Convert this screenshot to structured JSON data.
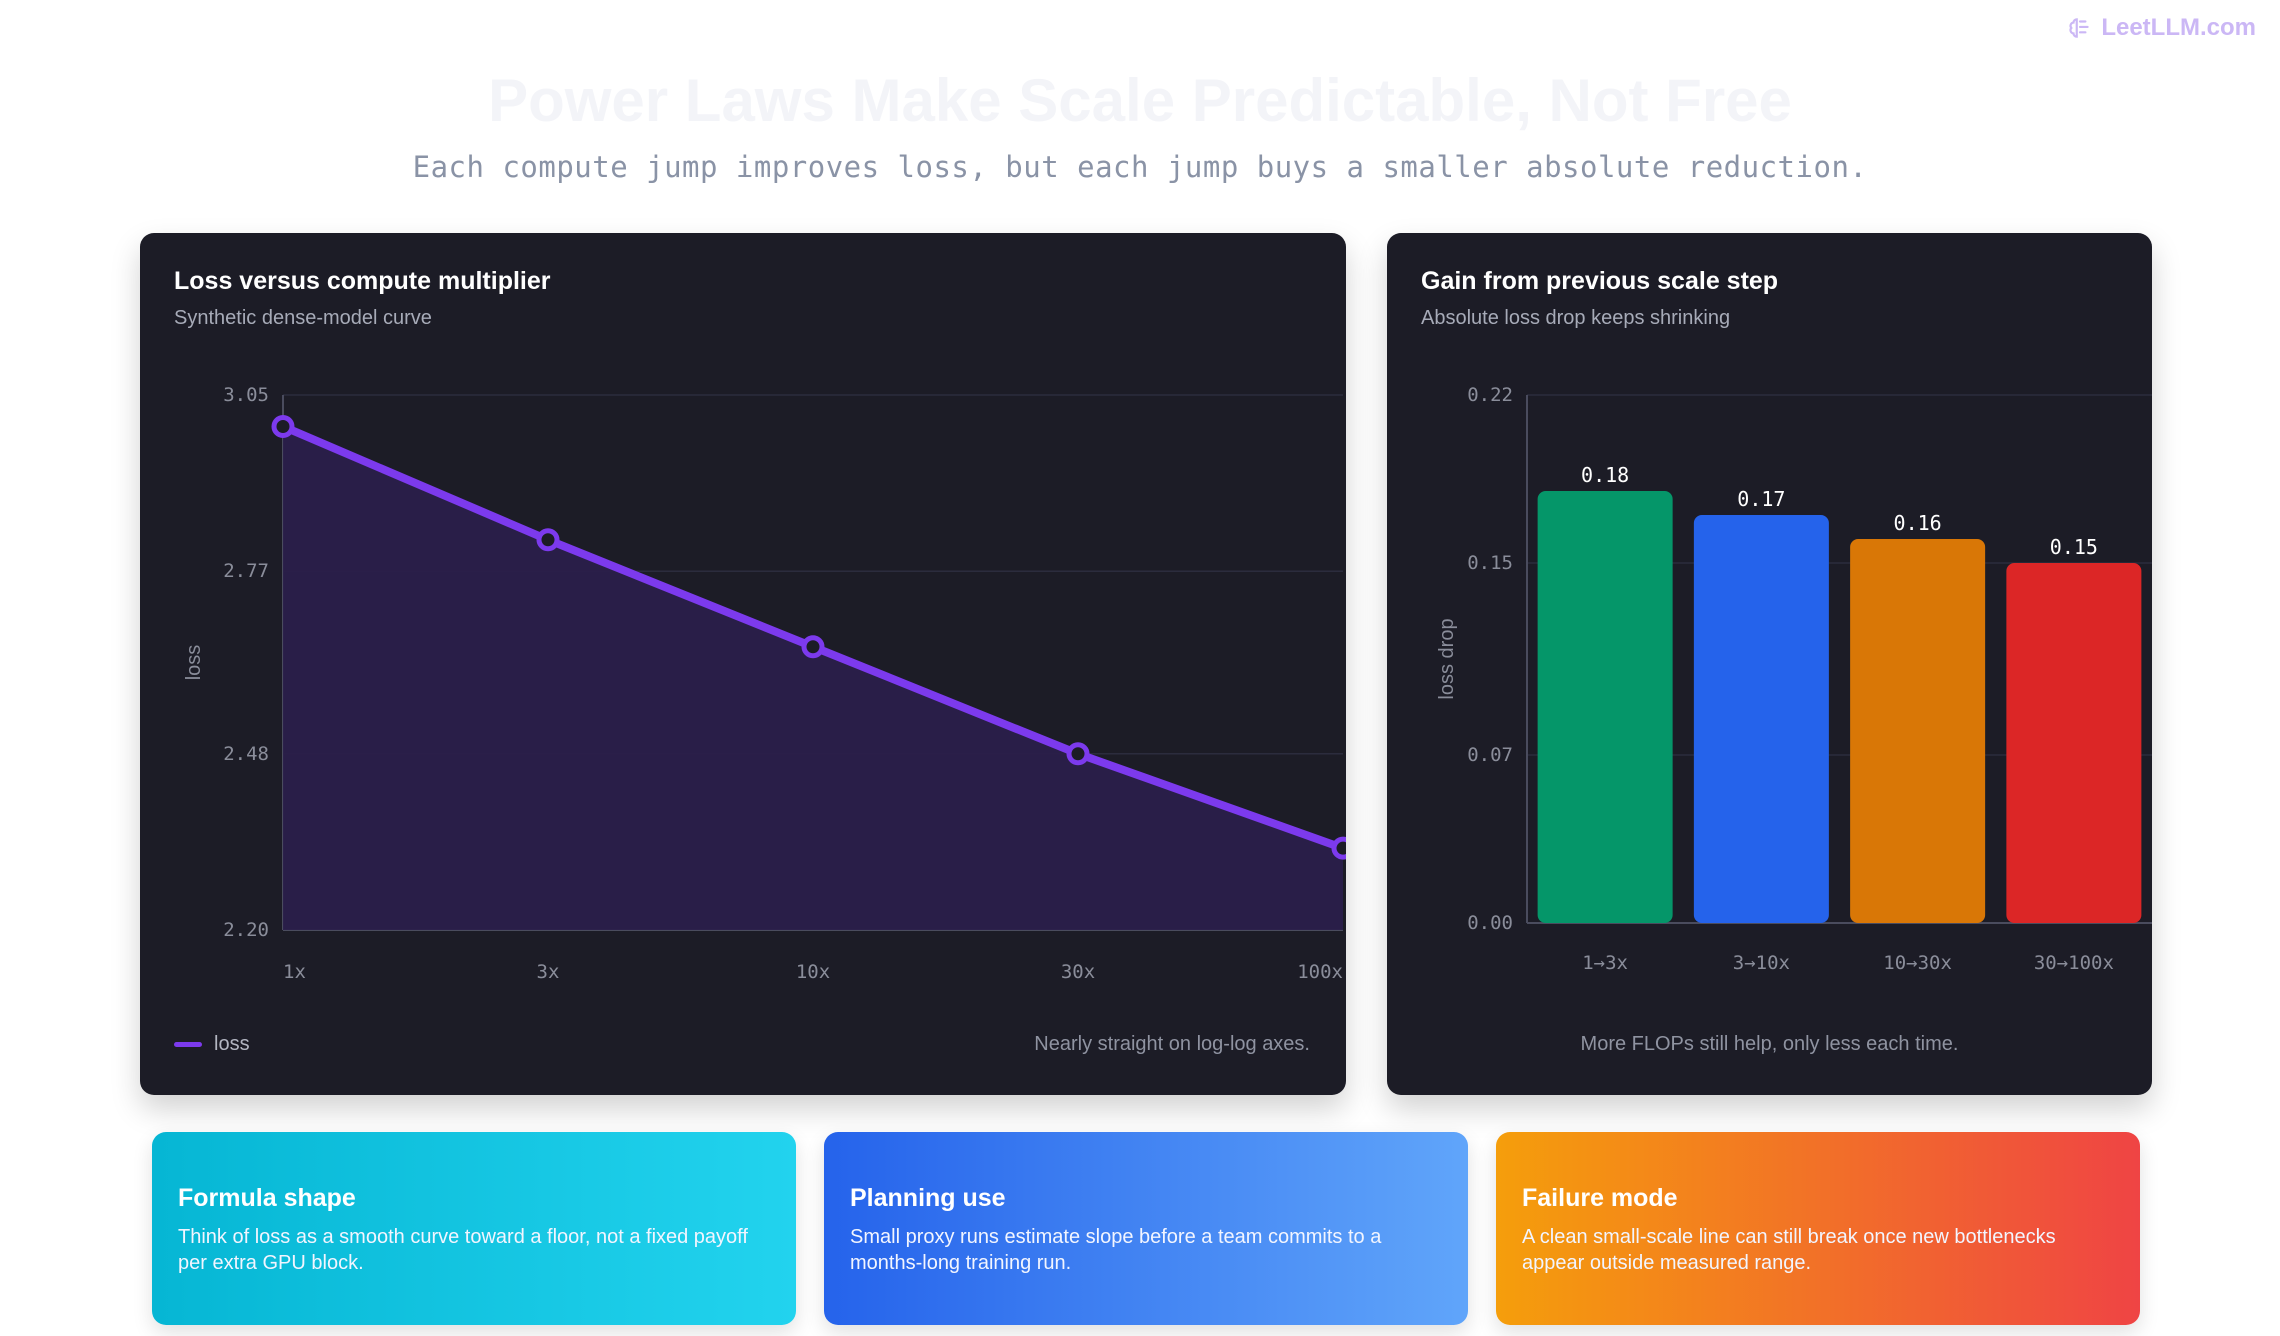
{
  "brand": {
    "label": "LeetLLM.com",
    "icon": "brain-icon"
  },
  "title": "Power Laws Make Scale Predictable, Not Free",
  "subtitle": "Each compute jump improves loss, but each jump buys a smaller absolute reduction.",
  "colors": {
    "line": "#7c3aed",
    "area": "#2a1f4a",
    "grid": "#2b2c3d",
    "bars": [
      "#059669",
      "#2563eb",
      "#d97706",
      "#dc2626"
    ]
  },
  "left_card": {
    "title": "Loss versus compute multiplier",
    "subtitle": "Synthetic dense-model curve",
    "legend_label": "loss",
    "note": "Nearly straight on log-log axes."
  },
  "right_card": {
    "title": "Gain from previous scale step",
    "subtitle": "Absolute loss drop keeps shrinking",
    "note": "More FLOPs still help, only less each time."
  },
  "chart_data": [
    {
      "type": "line",
      "title": "Loss versus compute multiplier",
      "xlabel": "",
      "ylabel": "loss",
      "x": [
        "1x",
        "3x",
        "10x",
        "30x",
        "100x"
      ],
      "series": [
        {
          "name": "loss",
          "values": [
            3.0,
            2.82,
            2.65,
            2.48,
            2.33
          ]
        }
      ],
      "yticks": [
        "3.05",
        "2.77",
        "2.48",
        "2.20"
      ],
      "ylim": [
        2.2,
        3.05
      ],
      "grid": true,
      "fill": "area",
      "legend": "bottom-left"
    },
    {
      "type": "bar",
      "title": "Gain from previous scale step",
      "xlabel": "",
      "ylabel": "loss drop",
      "categories": [
        "1→3x",
        "3→10x",
        "10→30x",
        "30→100x"
      ],
      "values": [
        0.18,
        0.17,
        0.16,
        0.15
      ],
      "value_labels": [
        "0.18",
        "0.17",
        "0.16",
        "0.15"
      ],
      "yticks": [
        "0.22",
        "0.15",
        "0.07",
        "0.00"
      ],
      "ylim": [
        0.0,
        0.22
      ],
      "grid": true
    }
  ],
  "info_cards": [
    {
      "title": "Formula shape",
      "body": "Think of loss as a smooth curve toward a floor, not a fixed payoff per extra GPU block."
    },
    {
      "title": "Planning use",
      "body": "Small proxy runs estimate slope before a team commits to a months-long training run."
    },
    {
      "title": "Failure mode",
      "body": "A clean small-scale line can still break once new bottlenecks appear outside measured range."
    }
  ]
}
